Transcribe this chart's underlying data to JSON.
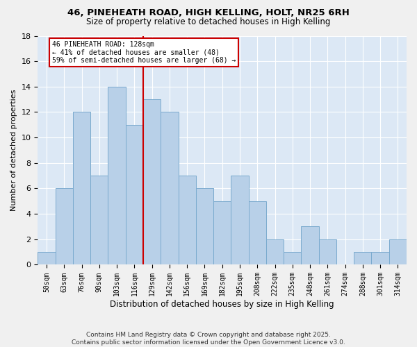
{
  "title1": "46, PINEHEATH ROAD, HIGH KELLING, HOLT, NR25 6RH",
  "title2": "Size of property relative to detached houses in High Kelling",
  "xlabel": "Distribution of detached houses by size in High Kelling",
  "ylabel": "Number of detached properties",
  "categories": [
    "50sqm",
    "63sqm",
    "76sqm",
    "90sqm",
    "103sqm",
    "116sqm",
    "129sqm",
    "142sqm",
    "156sqm",
    "169sqm",
    "182sqm",
    "195sqm",
    "208sqm",
    "222sqm",
    "235sqm",
    "248sqm",
    "261sqm",
    "274sqm",
    "288sqm",
    "301sqm",
    "314sqm"
  ],
  "values": [
    1,
    6,
    12,
    7,
    14,
    11,
    13,
    12,
    7,
    6,
    5,
    7,
    5,
    2,
    1,
    3,
    2,
    0,
    1,
    1,
    2
  ],
  "bar_color": "#b8d0e8",
  "bar_edge_color": "#7aaace",
  "vline_x_idx": 6,
  "vline_color": "#cc0000",
  "annotation_text": "46 PINEHEATH ROAD: 128sqm\n← 41% of detached houses are smaller (48)\n59% of semi-detached houses are larger (68) →",
  "annotation_box_color": "#cc0000",
  "ylim": [
    0,
    18
  ],
  "yticks": [
    0,
    2,
    4,
    6,
    8,
    10,
    12,
    14,
    16,
    18
  ],
  "fig_bg_color": "#f0f0f0",
  "plot_bg_color": "#dce8f5",
  "grid_color": "#ffffff",
  "footnote1": "Contains HM Land Registry data © Crown copyright and database right 2025.",
  "footnote2": "Contains public sector information licensed under the Open Government Licence v3.0."
}
